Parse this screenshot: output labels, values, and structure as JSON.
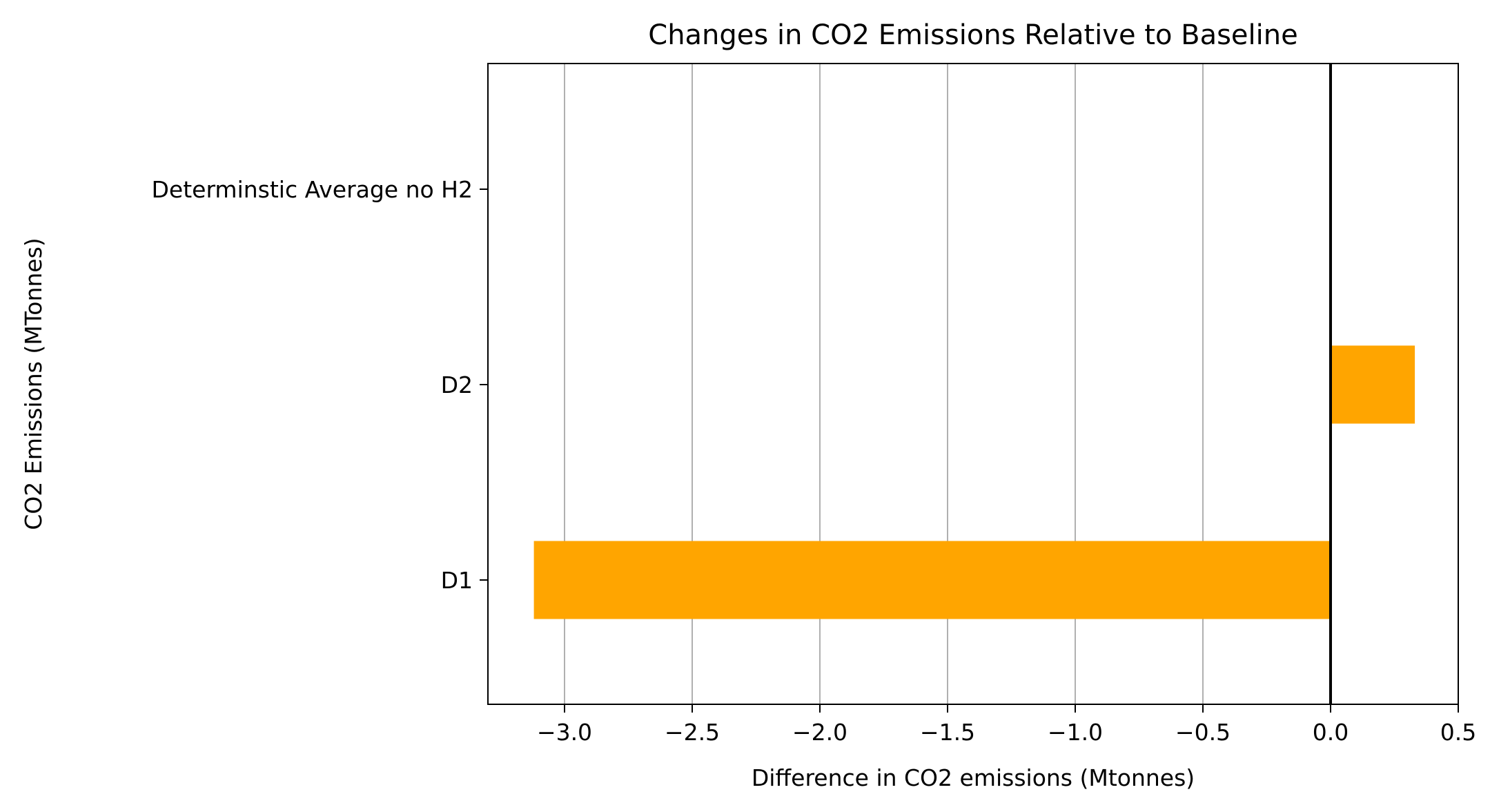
{
  "chart_data": {
    "type": "bar",
    "orientation": "horizontal",
    "title": "Changes in CO2 Emissions Relative to Baseline",
    "xlabel": "Difference in CO2 emissions (Mtonnes)",
    "ylabel": "CO2 Emissions (MTonnes)",
    "categories": [
      "D1",
      "D2",
      "Determinstic Average no H2"
    ],
    "values": [
      -3.12,
      0.33,
      0.0
    ],
    "bar_color": "#ffa500",
    "xlim": [
      -3.3,
      0.5
    ],
    "xticks": [
      -3.0,
      -2.5,
      -2.0,
      -1.5,
      -1.0,
      -0.5,
      0.0,
      0.5
    ],
    "xtick_labels": [
      "−3.0",
      "−2.5",
      "−2.0",
      "−1.5",
      "−1.0",
      "−0.5",
      "0.0",
      "0.5"
    ],
    "grid": "x",
    "reference_line": 0.0,
    "legend": "none"
  }
}
